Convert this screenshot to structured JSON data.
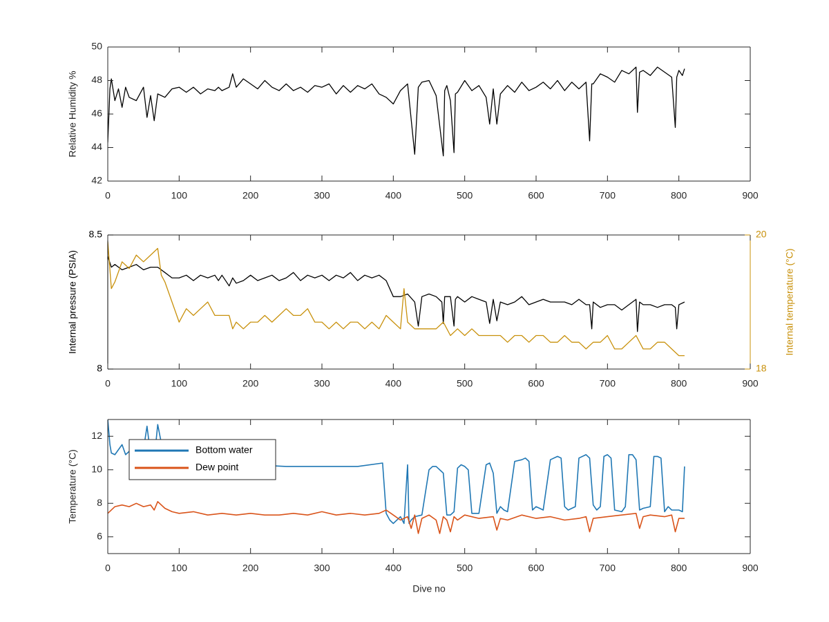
{
  "figure": {
    "background": "#ffffff"
  },
  "chart_data": [
    {
      "type": "line",
      "xlabel": "",
      "ylabel": "Relative Humidity %",
      "xlim": [
        0,
        900
      ],
      "ylim": [
        42,
        50
      ],
      "xticks": [
        "0",
        "100",
        "200",
        "300",
        "400",
        "500",
        "600",
        "700",
        "800",
        "900"
      ],
      "yticks": [
        "42",
        "44",
        "46",
        "48",
        "50"
      ],
      "grid": false,
      "series": [
        {
          "name": "",
          "color": "#000000",
          "x": [
            0,
            3,
            5,
            10,
            15,
            20,
            25,
            30,
            40,
            50,
            55,
            60,
            65,
            70,
            80,
            90,
            100,
            110,
            120,
            130,
            140,
            150,
            155,
            160,
            170,
            175,
            180,
            190,
            200,
            210,
            220,
            230,
            240,
            250,
            260,
            270,
            280,
            290,
            300,
            310,
            320,
            330,
            340,
            350,
            360,
            370,
            380,
            390,
            400,
            410,
            420,
            430,
            435,
            440,
            450,
            460,
            470,
            472,
            475,
            480,
            485,
            487,
            490,
            500,
            510,
            520,
            530,
            535,
            540,
            545,
            550,
            560,
            570,
            580,
            590,
            600,
            610,
            620,
            630,
            640,
            650,
            660,
            670,
            675,
            678,
            680,
            690,
            700,
            710,
            720,
            730,
            740,
            742,
            745,
            750,
            760,
            770,
            780,
            790,
            795,
            797,
            800,
            805,
            808
          ],
          "y": [
            44.3,
            47.5,
            48.1,
            46.8,
            47.5,
            46.4,
            47.6,
            47.0,
            46.8,
            47.6,
            45.8,
            47.1,
            45.6,
            47.2,
            47.0,
            47.5,
            47.6,
            47.3,
            47.6,
            47.2,
            47.5,
            47.4,
            47.6,
            47.4,
            47.6,
            48.4,
            47.6,
            48.1,
            47.8,
            47.5,
            48.0,
            47.6,
            47.4,
            47.8,
            47.4,
            47.6,
            47.3,
            47.7,
            47.6,
            47.8,
            47.2,
            47.7,
            47.3,
            47.7,
            47.5,
            47.8,
            47.2,
            47.0,
            46.6,
            47.4,
            47.8,
            43.6,
            47.6,
            47.9,
            48.0,
            47.1,
            43.5,
            47.4,
            47.7,
            46.8,
            43.7,
            47.2,
            47.3,
            48.0,
            47.4,
            47.7,
            47.0,
            45.4,
            47.5,
            45.4,
            47.2,
            47.7,
            47.3,
            47.9,
            47.4,
            47.6,
            47.9,
            47.5,
            48.0,
            47.4,
            47.9,
            47.5,
            47.9,
            44.4,
            47.8,
            47.8,
            48.4,
            48.2,
            47.9,
            48.6,
            48.4,
            48.8,
            46.1,
            48.5,
            48.6,
            48.3,
            48.8,
            48.5,
            48.2,
            45.2,
            48.2,
            48.6,
            48.3,
            48.7
          ]
        }
      ]
    },
    {
      "type": "line",
      "xlabel": "",
      "ylabel": "Internal pressure (PSIA)",
      "y2label": "Internal temperature (°C)",
      "xlim": [
        0,
        900
      ],
      "ylim": [
        8,
        8.5
      ],
      "y2lim": [
        18,
        20
      ],
      "xticks": [
        "0",
        "100",
        "200",
        "300",
        "400",
        "500",
        "600",
        "700",
        "800",
        "900"
      ],
      "yticks": [
        "8",
        "8.5"
      ],
      "y2ticks": [
        "18",
        "20"
      ],
      "grid": false,
      "series": [
        {
          "name": "",
          "axis": "left",
          "color": "#000000",
          "x": [
            0,
            5,
            10,
            20,
            30,
            40,
            50,
            60,
            70,
            80,
            90,
            100,
            110,
            120,
            130,
            140,
            150,
            155,
            160,
            170,
            175,
            180,
            190,
            200,
            210,
            220,
            230,
            240,
            250,
            260,
            270,
            280,
            290,
            300,
            310,
            320,
            330,
            340,
            350,
            360,
            370,
            380,
            390,
            400,
            410,
            420,
            430,
            435,
            440,
            450,
            460,
            468,
            470,
            472,
            480,
            485,
            487,
            490,
            500,
            510,
            520,
            530,
            535,
            540,
            545,
            550,
            560,
            570,
            580,
            590,
            600,
            610,
            620,
            630,
            640,
            650,
            660,
            670,
            675,
            678,
            680,
            690,
            700,
            710,
            720,
            730,
            740,
            742,
            745,
            750,
            760,
            770,
            780,
            790,
            795,
            797,
            800,
            808
          ],
          "y": [
            8.42,
            8.38,
            8.39,
            8.37,
            8.38,
            8.39,
            8.37,
            8.38,
            8.38,
            8.36,
            8.34,
            8.34,
            8.35,
            8.33,
            8.35,
            8.34,
            8.35,
            8.33,
            8.35,
            8.31,
            8.34,
            8.32,
            8.33,
            8.35,
            8.33,
            8.34,
            8.35,
            8.33,
            8.34,
            8.36,
            8.33,
            8.35,
            8.34,
            8.35,
            8.33,
            8.35,
            8.34,
            8.36,
            8.33,
            8.35,
            8.34,
            8.35,
            8.33,
            8.27,
            8.27,
            8.28,
            8.25,
            8.16,
            8.27,
            8.28,
            8.27,
            8.25,
            8.17,
            8.27,
            8.27,
            8.16,
            8.26,
            8.27,
            8.25,
            8.27,
            8.26,
            8.25,
            8.17,
            8.26,
            8.18,
            8.25,
            8.24,
            8.25,
            8.27,
            8.24,
            8.25,
            8.26,
            8.25,
            8.25,
            8.25,
            8.24,
            8.26,
            8.24,
            8.24,
            8.15,
            8.25,
            8.23,
            8.24,
            8.24,
            8.22,
            8.24,
            8.26,
            8.14,
            8.25,
            8.24,
            8.24,
            8.23,
            8.24,
            8.24,
            8.23,
            8.15,
            8.24,
            8.25
          ]
        },
        {
          "name": "",
          "axis": "right",
          "color": "#c8900a",
          "x": [
            0,
            5,
            10,
            20,
            30,
            40,
            50,
            60,
            70,
            75,
            80,
            90,
            100,
            110,
            120,
            130,
            140,
            150,
            160,
            170,
            175,
            180,
            190,
            200,
            210,
            220,
            230,
            240,
            250,
            260,
            270,
            280,
            290,
            300,
            310,
            320,
            330,
            340,
            350,
            360,
            370,
            380,
            390,
            400,
            410,
            415,
            420,
            430,
            440,
            450,
            460,
            470,
            480,
            490,
            500,
            510,
            520,
            530,
            540,
            550,
            560,
            570,
            580,
            590,
            600,
            610,
            620,
            630,
            640,
            650,
            660,
            670,
            680,
            690,
            700,
            710,
            720,
            730,
            740,
            750,
            760,
            770,
            780,
            790,
            800,
            808
          ],
          "y": [
            19.9,
            19.2,
            19.3,
            19.6,
            19.5,
            19.7,
            19.6,
            19.7,
            19.8,
            19.4,
            19.3,
            19.0,
            18.7,
            18.9,
            18.8,
            18.9,
            19.0,
            18.8,
            18.8,
            18.8,
            18.6,
            18.7,
            18.6,
            18.7,
            18.7,
            18.8,
            18.7,
            18.8,
            18.9,
            18.8,
            18.8,
            18.9,
            18.7,
            18.7,
            18.6,
            18.7,
            18.6,
            18.7,
            18.7,
            18.6,
            18.7,
            18.6,
            18.8,
            18.7,
            18.6,
            19.2,
            18.7,
            18.6,
            18.6,
            18.6,
            18.6,
            18.7,
            18.5,
            18.6,
            18.5,
            18.6,
            18.5,
            18.5,
            18.5,
            18.5,
            18.4,
            18.5,
            18.5,
            18.4,
            18.5,
            18.5,
            18.4,
            18.4,
            18.5,
            18.4,
            18.4,
            18.3,
            18.4,
            18.4,
            18.5,
            18.3,
            18.3,
            18.4,
            18.5,
            18.3,
            18.3,
            18.4,
            18.4,
            18.3,
            18.2,
            18.2
          ]
        }
      ]
    },
    {
      "type": "line",
      "xlabel": "Dive no",
      "ylabel": "Temperature (°C)",
      "xlim": [
        0,
        900
      ],
      "ylim": [
        5,
        13
      ],
      "xticks": [
        "0",
        "100",
        "200",
        "300",
        "400",
        "500",
        "600",
        "700",
        "800",
        "900"
      ],
      "yticks": [
        "6",
        "8",
        "10",
        "12"
      ],
      "grid": false,
      "legend_position": "top-left",
      "series": [
        {
          "name": "Bottom water",
          "color": "#1f77b4",
          "x": [
            0,
            3,
            5,
            10,
            15,
            20,
            25,
            30,
            50,
            55,
            60,
            65,
            70,
            80,
            100,
            150,
            200,
            250,
            300,
            350,
            385,
            390,
            395,
            400,
            410,
            415,
            420,
            422,
            425,
            430,
            440,
            450,
            455,
            460,
            470,
            475,
            480,
            485,
            490,
            495,
            500,
            505,
            510,
            520,
            530,
            535,
            540,
            545,
            550,
            555,
            560,
            570,
            580,
            585,
            590,
            595,
            600,
            605,
            610,
            620,
            630,
            635,
            640,
            645,
            650,
            655,
            660,
            670,
            675,
            680,
            685,
            690,
            695,
            700,
            705,
            710,
            720,
            725,
            730,
            735,
            740,
            745,
            750,
            760,
            765,
            770,
            775,
            780,
            785,
            790,
            800,
            805,
            808
          ],
          "y": [
            13.0,
            11.5,
            11.0,
            10.9,
            11.2,
            11.5,
            10.9,
            11.1,
            11.2,
            12.6,
            10.9,
            10.6,
            12.7,
            10.5,
            10.4,
            10.3,
            10.3,
            10.2,
            10.2,
            10.2,
            10.4,
            7.4,
            7.0,
            6.8,
            7.2,
            6.8,
            10.3,
            6.8,
            7.0,
            7.2,
            7.3,
            10.0,
            10.2,
            10.2,
            9.8,
            7.3,
            7.3,
            7.5,
            10.1,
            10.3,
            10.2,
            10.0,
            7.4,
            7.4,
            10.3,
            10.4,
            9.8,
            7.4,
            7.8,
            7.6,
            7.5,
            10.5,
            10.6,
            10.7,
            10.5,
            7.6,
            7.8,
            7.7,
            7.6,
            10.6,
            10.8,
            10.7,
            7.8,
            7.6,
            7.7,
            7.8,
            10.7,
            10.9,
            10.7,
            7.9,
            7.6,
            7.8,
            10.8,
            10.9,
            10.7,
            7.6,
            7.5,
            7.8,
            10.9,
            10.9,
            10.6,
            7.6,
            7.7,
            7.8,
            10.8,
            10.8,
            10.7,
            7.5,
            7.8,
            7.6,
            7.6,
            7.5,
            10.2
          ]
        },
        {
          "name": "Dew point",
          "color": "#d95319",
          "x": [
            0,
            10,
            20,
            30,
            40,
            50,
            60,
            65,
            70,
            80,
            90,
            100,
            120,
            140,
            160,
            180,
            200,
            220,
            240,
            260,
            280,
            300,
            320,
            340,
            360,
            380,
            390,
            400,
            410,
            420,
            425,
            430,
            435,
            440,
            450,
            460,
            465,
            470,
            475,
            480,
            485,
            490,
            500,
            520,
            540,
            545,
            550,
            560,
            580,
            600,
            620,
            640,
            660,
            670,
            675,
            680,
            700,
            720,
            740,
            745,
            750,
            760,
            780,
            790,
            795,
            800,
            808
          ],
          "y": [
            7.4,
            7.8,
            7.9,
            7.8,
            8.0,
            7.8,
            7.9,
            7.6,
            8.1,
            7.7,
            7.5,
            7.4,
            7.5,
            7.3,
            7.4,
            7.3,
            7.4,
            7.3,
            7.3,
            7.4,
            7.3,
            7.5,
            7.3,
            7.4,
            7.3,
            7.4,
            7.6,
            7.3,
            7.0,
            7.2,
            6.5,
            7.3,
            6.2,
            7.1,
            7.3,
            7.0,
            6.2,
            7.2,
            7.0,
            6.3,
            7.2,
            7.0,
            7.3,
            7.1,
            7.2,
            6.4,
            7.1,
            7.0,
            7.3,
            7.1,
            7.2,
            7.0,
            7.1,
            7.2,
            6.3,
            7.1,
            7.2,
            7.3,
            7.4,
            6.5,
            7.2,
            7.3,
            7.2,
            7.3,
            6.3,
            7.1,
            7.1
          ]
        }
      ]
    }
  ]
}
